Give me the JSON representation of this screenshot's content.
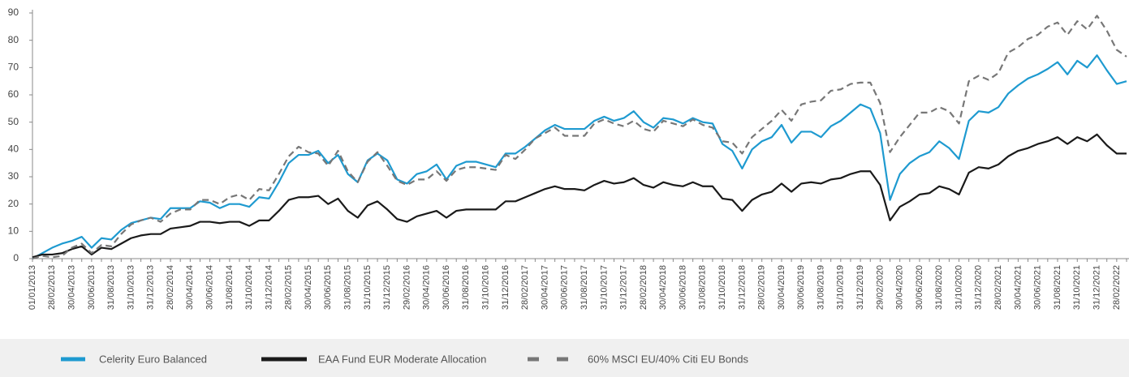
{
  "chart_data": {
    "type": "line",
    "categories": [
      "01/01/2013",
      null,
      "28/02/2013",
      null,
      "30/04/2013",
      null,
      "30/06/2013",
      null,
      "31/08/2013",
      null,
      "31/10/2013",
      null,
      "31/12/2013",
      null,
      "28/02/2014",
      null,
      "30/04/2014",
      null,
      "30/06/2014",
      null,
      "31/08/2014",
      null,
      "31/10/2014",
      null,
      "31/12/2014",
      null,
      "28/02/2015",
      null,
      "30/04/2015",
      null,
      "30/06/2015",
      null,
      "31/08/2015",
      null,
      "31/10/2015",
      null,
      "31/12/2015",
      null,
      "29/02/2016",
      null,
      "30/04/2016",
      null,
      "30/06/2016",
      null,
      "31/08/2016",
      null,
      "31/10/2016",
      null,
      "31/12/2016",
      null,
      "28/02/2017",
      null,
      "30/04/2017",
      null,
      "30/06/2017",
      null,
      "31/08/2017",
      null,
      "31/10/2017",
      null,
      "31/12/2017",
      null,
      "28/02/2018",
      null,
      "30/04/2018",
      null,
      "30/06/2018",
      null,
      "31/08/2018",
      null,
      "31/10/2018",
      null,
      "31/12/2018",
      null,
      "28/02/2019",
      null,
      "30/04/2019",
      null,
      "30/06/2019",
      null,
      "31/08/2019",
      null,
      "31/10/2019",
      null,
      "31/12/2019",
      null,
      "29/02/2020",
      null,
      "30/04/2020",
      null,
      "30/06/2020",
      null,
      "31/08/2020",
      null,
      "31/10/2020",
      null,
      "31/12/2020",
      null,
      "28/02/2021",
      null,
      "30/04/2021",
      null,
      "30/06/2021",
      null,
      "31/08/2021",
      null,
      "31/10/2021",
      null,
      "31/12/2021",
      null,
      "28/02/2022",
      null
    ],
    "series": [
      {
        "name": "Celerity Euro Balanced",
        "color": "#1e9ad0",
        "style": "solid",
        "values": [
          0,
          2,
          4,
          5.5,
          6.5,
          8,
          4,
          7.5,
          7,
          10.5,
          13,
          14,
          15,
          14.5,
          18.5,
          18.5,
          18.5,
          21,
          20.5,
          18.5,
          20,
          20,
          19,
          22.5,
          22,
          28,
          35,
          38,
          38,
          39.5,
          35,
          38,
          31,
          28,
          36,
          38.5,
          36,
          29,
          27.5,
          31,
          32,
          34.5,
          29,
          34,
          35.5,
          35.5,
          34.5,
          33.5,
          38.5,
          38.5,
          41,
          44,
          47,
          49,
          47.5,
          47.5,
          47.5,
          50.5,
          52,
          50.5,
          51.5,
          54,
          50,
          48,
          51.5,
          51,
          49.5,
          51.5,
          50,
          49.5,
          42,
          39.5,
          33,
          40,
          43,
          44.5,
          49,
          42.5,
          46.5,
          46.5,
          44.5,
          48.5,
          50.5,
          53.5,
          56.5,
          55,
          46,
          21.5,
          31,
          35,
          37.5,
          39,
          43,
          40.5,
          36.5,
          50.5,
          54,
          53.5,
          55.5,
          60.5,
          63.5,
          66,
          67.5,
          69.5,
          72,
          67.5,
          72.5,
          70,
          74.5,
          69,
          64,
          65
        ]
      },
      {
        "name": "EAA Fund EUR Moderate Allocation",
        "color": "#1a1a1a",
        "style": "solid",
        "values": [
          0.5,
          1.5,
          1.5,
          2,
          3.5,
          4.5,
          1.5,
          4,
          3.5,
          5.5,
          7.5,
          8.5,
          9,
          9,
          11,
          11.5,
          12,
          13.5,
          13.5,
          13,
          13.5,
          13.5,
          12,
          14,
          14,
          17.5,
          21.5,
          22.5,
          22.5,
          23,
          20,
          22,
          17.5,
          15,
          19.5,
          21,
          18,
          14.5,
          13.5,
          15.5,
          16.5,
          17.5,
          15,
          17.5,
          18,
          18,
          18,
          18,
          21,
          21,
          22.5,
          24,
          25.5,
          26.5,
          25.5,
          25.5,
          25,
          27,
          28.5,
          27.5,
          28,
          29.5,
          27,
          26,
          28,
          27,
          26.5,
          28,
          26.5,
          26.5,
          22,
          21.5,
          17.5,
          21.5,
          23.5,
          24.5,
          27.5,
          24.5,
          27.5,
          28,
          27.5,
          29,
          29.5,
          31,
          32,
          32,
          27,
          14,
          19,
          21,
          23.5,
          24,
          26.5,
          25.5,
          23.5,
          31.5,
          33.5,
          33,
          34.5,
          37.5,
          39.5,
          40.5,
          42,
          43,
          44.5,
          42,
          44.5,
          43,
          45.5,
          41.5,
          38.5,
          38.5
        ]
      },
      {
        "name": "60% MSCI EU/40% Citi EU Bonds",
        "color": "#777777",
        "style": "dashed",
        "values": [
          0,
          1,
          0.5,
          1,
          4,
          5.5,
          2,
          5,
          4.5,
          9,
          12.5,
          14,
          15,
          13.5,
          16.5,
          18,
          18,
          21.5,
          21.5,
          20,
          22.5,
          23.5,
          21.5,
          25.5,
          25,
          31,
          37.5,
          41,
          39,
          38.5,
          34,
          39.5,
          32,
          28,
          35.5,
          39,
          34,
          28.5,
          27,
          29,
          29,
          32,
          28.5,
          32.5,
          33.5,
          33.5,
          33,
          32.5,
          38,
          36.5,
          40,
          44,
          46,
          48,
          45,
          45,
          45,
          49.5,
          51,
          49.5,
          48.5,
          50.5,
          47.5,
          46.5,
          50.5,
          49.5,
          48.5,
          51,
          49,
          48,
          43,
          42.5,
          38.5,
          44.5,
          47.5,
          50.5,
          54.5,
          50.5,
          56.5,
          57.5,
          58,
          61.5,
          62,
          64,
          64.5,
          64.5,
          57,
          39,
          44.5,
          49,
          53.5,
          53.5,
          55.5,
          54,
          49.5,
          65,
          67,
          65.5,
          68,
          75.5,
          77.5,
          80.5,
          82,
          85,
          86.5,
          82,
          87,
          84,
          89,
          83.5,
          76.5,
          74
        ]
      }
    ],
    "ylim": [
      0,
      90
    ],
    "yticks": [
      0,
      10,
      20,
      30,
      40,
      50,
      60,
      70,
      80,
      90
    ],
    "grid": false
  }
}
